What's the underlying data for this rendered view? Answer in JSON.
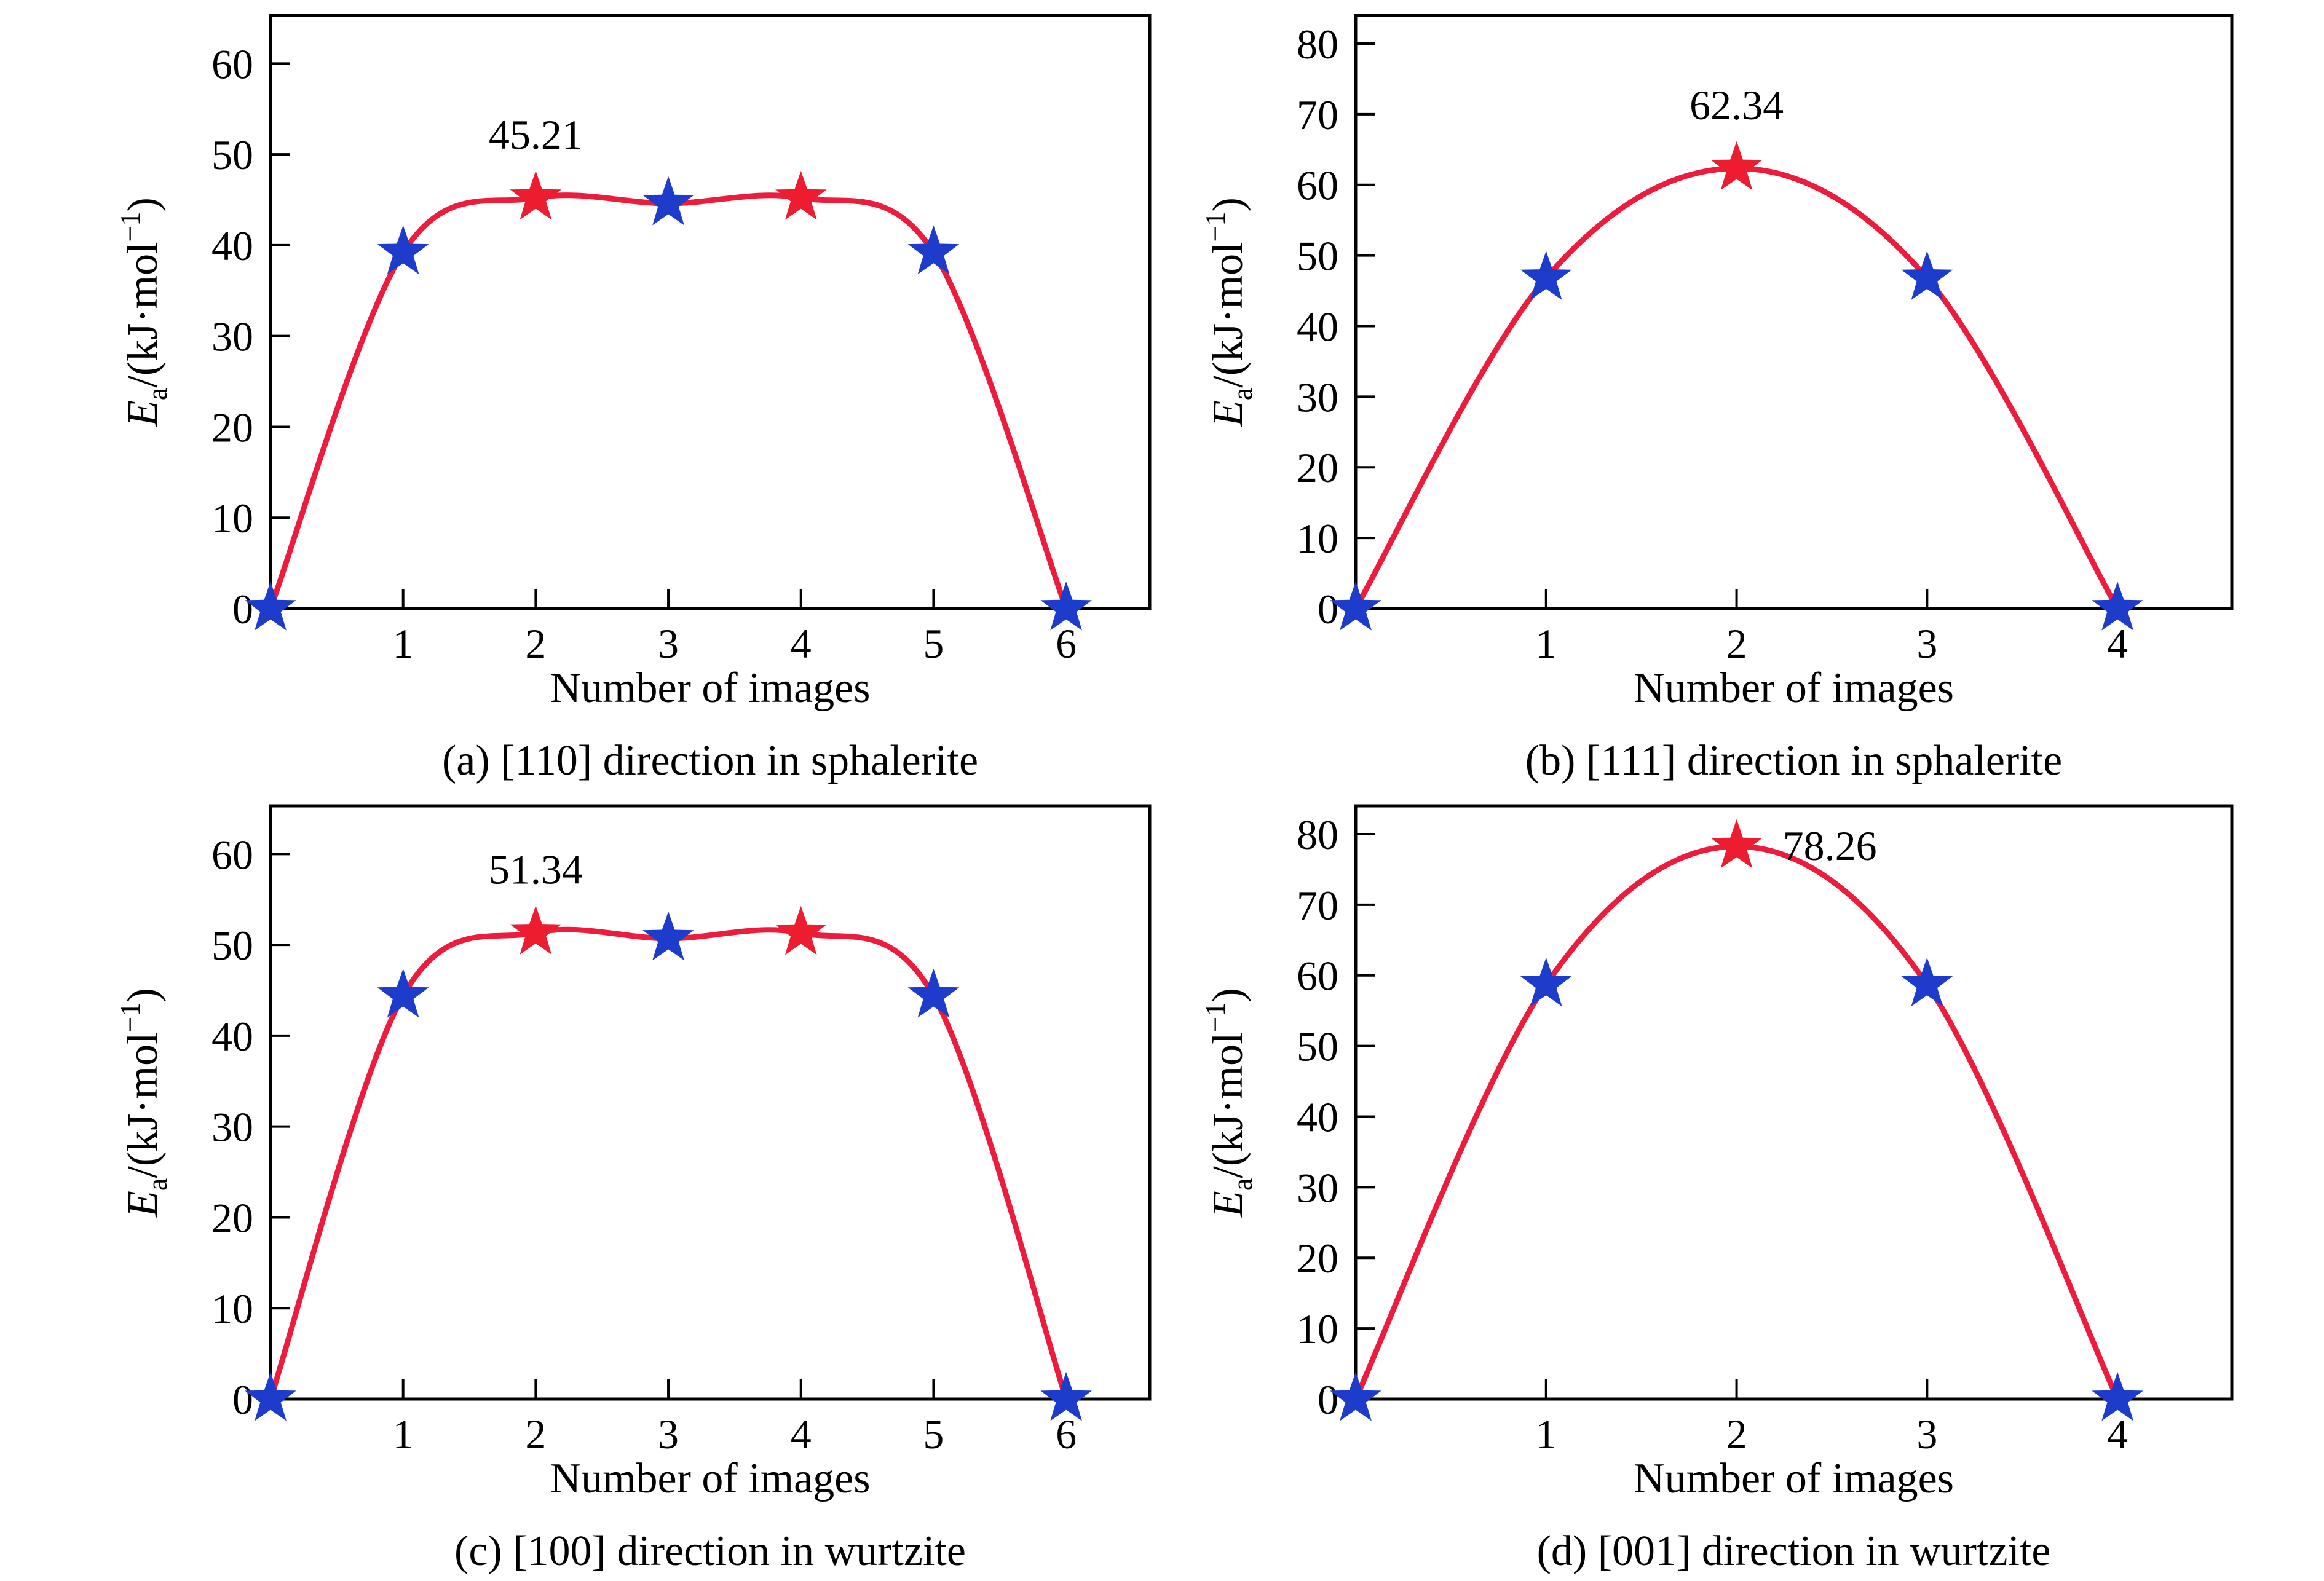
{
  "figure": {
    "background": "#ffffff"
  },
  "style": {
    "line_color": "#ee1c3c",
    "marker_blue": "#1e3ccc",
    "marker_red": "#ed1c2e",
    "annotation_color": "#ed1c2e",
    "axis_color": "#000000"
  },
  "chart_data": [
    {
      "id": "a",
      "type": "line",
      "caption": "(a) [110] direction in sphalerite",
      "xlabel": "Number of images",
      "ylabel": "Ea/(kJ·mol−1)",
      "ylabel_parts": [
        {
          "t": "E",
          "style": "italic"
        },
        {
          "t": "a",
          "script": "sub"
        },
        {
          "t": "/(kJ·mol"
        },
        {
          "t": "−1",
          "script": "sup"
        },
        {
          "t": ")"
        }
      ],
      "x": [
        0,
        1,
        2,
        3,
        4,
        5,
        6
      ],
      "y": [
        0,
        39.2,
        45.21,
        44.6,
        45.2,
        39.2,
        0
      ],
      "marker_colors": [
        "blue",
        "blue",
        "red",
        "blue",
        "red",
        "blue",
        "blue"
      ],
      "annotation": {
        "text": "45.21",
        "x": 2,
        "y": 45.21,
        "placement": "above"
      },
      "xlim": [
        0,
        6.63
      ],
      "ylim": [
        0,
        65.3
      ],
      "xticks": [
        "1",
        "2",
        "3",
        "4",
        "5",
        "6"
      ],
      "yticks": [
        "0",
        "10",
        "20",
        "30",
        "40",
        "50",
        "60"
      ],
      "grid": false,
      "legend": null
    },
    {
      "id": "b",
      "type": "line",
      "caption": "(b) [111] direction in sphalerite",
      "xlabel": "Number of images",
      "ylabel": "Ea/(kJ·mol−1)",
      "ylabel_parts": [
        {
          "t": "E",
          "style": "italic"
        },
        {
          "t": "a",
          "script": "sub"
        },
        {
          "t": "/(kJ·mol"
        },
        {
          "t": "−1",
          "script": "sup"
        },
        {
          "t": ")"
        }
      ],
      "x": [
        0,
        1,
        2,
        3,
        4
      ],
      "y": [
        0,
        46.8,
        62.34,
        46.8,
        0
      ],
      "marker_colors": [
        "blue",
        "blue",
        "red",
        "blue",
        "blue"
      ],
      "annotation": {
        "text": "62.34",
        "x": 2,
        "y": 62.34,
        "placement": "above"
      },
      "xlim": [
        0,
        4.6
      ],
      "ylim": [
        0,
        84
      ],
      "xticks": [
        "1",
        "2",
        "3",
        "4"
      ],
      "yticks": [
        "0",
        "10",
        "20",
        "30",
        "40",
        "50",
        "60",
        "70",
        "80"
      ],
      "grid": false,
      "legend": null
    },
    {
      "id": "c",
      "type": "line",
      "caption": "(c) [100] direction in wurtzite",
      "xlabel": "Number of images",
      "ylabel": "Ea/(kJ·mol−1)",
      "ylabel_parts": [
        {
          "t": "E",
          "style": "italic"
        },
        {
          "t": "a",
          "script": "sub"
        },
        {
          "t": "/(kJ·mol"
        },
        {
          "t": "−1",
          "script": "sup"
        },
        {
          "t": ")"
        }
      ],
      "x": [
        0,
        1,
        2,
        3,
        4,
        5,
        6
      ],
      "y": [
        0,
        44.4,
        51.34,
        50.7,
        51.3,
        44.4,
        0
      ],
      "marker_colors": [
        "blue",
        "blue",
        "red",
        "blue",
        "red",
        "blue",
        "blue"
      ],
      "annotation": {
        "text": "51.34",
        "x": 2,
        "y": 51.34,
        "placement": "above"
      },
      "xlim": [
        0,
        6.63
      ],
      "ylim": [
        0,
        65.3
      ],
      "xticks": [
        "1",
        "2",
        "3",
        "4",
        "5",
        "6"
      ],
      "yticks": [
        "0",
        "10",
        "20",
        "30",
        "40",
        "50",
        "60"
      ],
      "grid": false,
      "legend": null
    },
    {
      "id": "d",
      "type": "line",
      "caption": "(d) [001] direction in wurtzite",
      "xlabel": "Number of images",
      "ylabel": "Ea/(kJ·mol−1)",
      "ylabel_parts": [
        {
          "t": "E",
          "style": "italic"
        },
        {
          "t": "a",
          "script": "sub"
        },
        {
          "t": "/(kJ·mol"
        },
        {
          "t": "−1",
          "script": "sup"
        },
        {
          "t": ")"
        }
      ],
      "x": [
        0,
        1,
        2,
        3,
        4
      ],
      "y": [
        0,
        58.7,
        78.26,
        58.7,
        0
      ],
      "marker_colors": [
        "blue",
        "blue",
        "red",
        "blue",
        "blue"
      ],
      "annotation": {
        "text": "78.26",
        "x": 2,
        "y": 78.26,
        "placement": "right"
      },
      "xlim": [
        0,
        4.6
      ],
      "ylim": [
        0,
        84
      ],
      "xticks": [
        "1",
        "2",
        "3",
        "4"
      ],
      "yticks": [
        "0",
        "10",
        "20",
        "30",
        "40",
        "50",
        "60",
        "70",
        "80"
      ],
      "grid": false,
      "legend": null
    }
  ]
}
